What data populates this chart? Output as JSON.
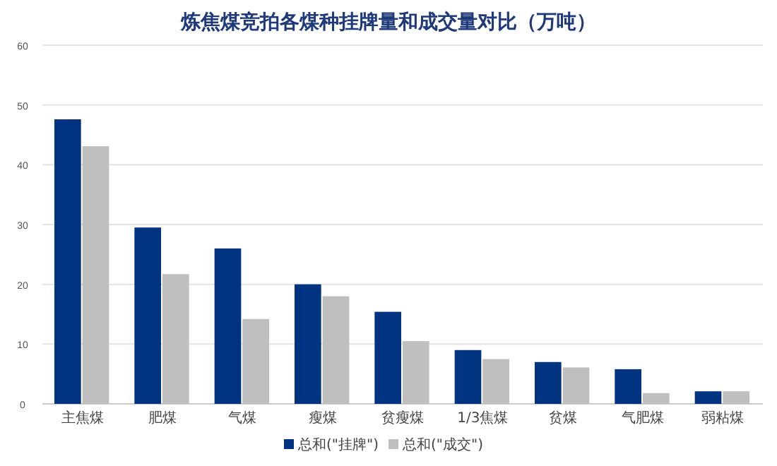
{
  "chart_data": {
    "type": "bar",
    "title": "炼焦煤竞拍各煤种挂牌量和成交量对比（万吨）",
    "categories": [
      "主焦煤",
      "肥煤",
      "气煤",
      "瘦煤",
      "贫瘦煤",
      "1/3焦煤",
      "贫煤",
      "气肥煤",
      "弱粘煤"
    ],
    "series": [
      {
        "name": "总和(\"挂牌\")",
        "color": "#003380",
        "values": [
          47.6,
          29.5,
          26,
          20,
          15.4,
          9,
          7,
          5.8,
          2.1
        ]
      },
      {
        "name": "总和(\"成交\")",
        "color": "#bfbfbf",
        "values": [
          43.1,
          21.7,
          14.2,
          18,
          10.5,
          7.5,
          6.1,
          1.8,
          2.1
        ]
      }
    ],
    "ylim": [
      0,
      60
    ],
    "yticks": [
      0,
      10,
      20,
      30,
      40,
      50,
      60
    ],
    "grid": "y",
    "legend": "bottom"
  }
}
